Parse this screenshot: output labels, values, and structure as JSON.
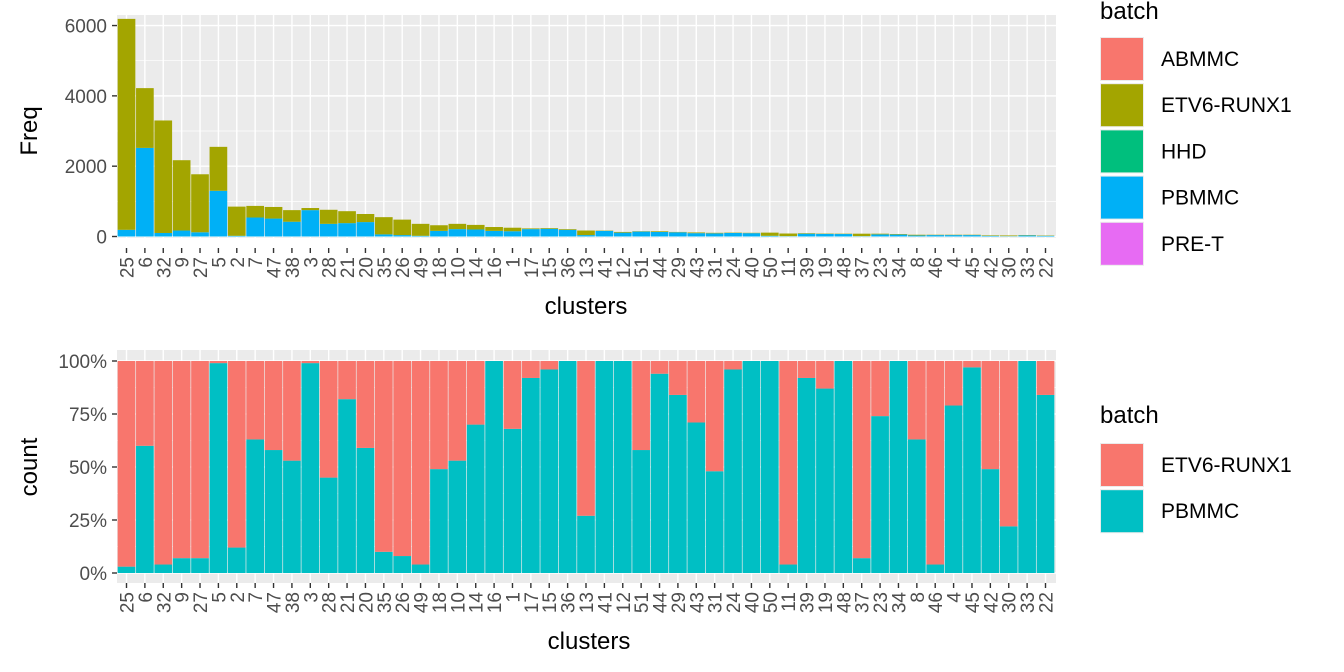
{
  "colors": {
    "ABMMC": "#F8766D",
    "ETV6-RUNX1": "#A3A500",
    "HHD": "#00BF7D",
    "PBMMC": "#00B0F6",
    "PRE-T": "#E76BF3",
    "ETV6-RUNX1_2": "#F8766D",
    "PBMMC_2": "#00BFC4",
    "panel_bg": "#EBEBEB",
    "grid": "#FFFFFF"
  },
  "chart_data": [
    {
      "type": "bar",
      "stacked": true,
      "xlabel": "clusters",
      "ylabel": "Freq",
      "ylim": [
        0,
        6300
      ],
      "yticks": [
        0,
        2000,
        4000,
        6000
      ],
      "ytick_labels": [
        "0",
        "2000",
        "4000",
        "6000"
      ],
      "grid": true,
      "legend_title": "batch",
      "legend_entries": [
        "ABMMC",
        "ETV6-RUNX1",
        "HHD",
        "PBMMC",
        "PRE-T"
      ],
      "legend_position": "right",
      "categories": [
        "25",
        "6",
        "32",
        "9",
        "27",
        "5",
        "2",
        "7",
        "47",
        "38",
        "3",
        "28",
        "21",
        "20",
        "35",
        "26",
        "49",
        "18",
        "10",
        "14",
        "16",
        "1",
        "17",
        "15",
        "36",
        "13",
        "41",
        "12",
        "51",
        "44",
        "29",
        "43",
        "31",
        "24",
        "40",
        "50",
        "11",
        "39",
        "19",
        "48",
        "37",
        "23",
        "34",
        "8",
        "46",
        "4",
        "45",
        "42",
        "30",
        "33",
        "22"
      ],
      "series": [
        {
          "name": "ETV6-RUNX1",
          "values": [
            6000,
            1700,
            3200,
            2000,
            1650,
            1250,
            830,
            330,
            330,
            330,
            60,
            400,
            340,
            230,
            490,
            440,
            340,
            160,
            150,
            130,
            110,
            100,
            20,
            20,
            20,
            130,
            10,
            20,
            10,
            20,
            10,
            20,
            15,
            10,
            10,
            90,
            75,
            15,
            10,
            10,
            70,
            20,
            15,
            20,
            10,
            10,
            10,
            15,
            20,
            10,
            10
          ]
        },
        {
          "name": "PBMMC",
          "values": [
            190,
            2520,
            100,
            170,
            120,
            1300,
            20,
            540,
            510,
            420,
            750,
            360,
            380,
            410,
            60,
            40,
            20,
            160,
            210,
            200,
            160,
            150,
            210,
            220,
            190,
            40,
            160,
            110,
            140,
            130,
            120,
            95,
            90,
            100,
            95,
            20,
            10,
            80,
            75,
            70,
            10,
            60,
            55,
            30,
            40,
            40,
            40,
            20,
            10,
            30,
            20
          ]
        }
      ]
    },
    {
      "type": "bar",
      "stacked": true,
      "position": "fill",
      "xlabel": "clusters",
      "ylabel": "count",
      "ylim": [
        0,
        1
      ],
      "yticks": [
        0,
        0.25,
        0.5,
        0.75,
        1
      ],
      "ytick_labels": [
        "0%",
        "25%",
        "50%",
        "75%",
        "100%"
      ],
      "grid": true,
      "legend_title": "batch",
      "legend_entries": [
        "ETV6-RUNX1",
        "PBMMC"
      ],
      "legend_position": "right",
      "categories": [
        "25",
        "6",
        "32",
        "9",
        "27",
        "5",
        "2",
        "7",
        "47",
        "38",
        "3",
        "28",
        "21",
        "20",
        "35",
        "26",
        "49",
        "18",
        "10",
        "14",
        "16",
        "1",
        "17",
        "15",
        "36",
        "13",
        "41",
        "12",
        "51",
        "44",
        "29",
        "43",
        "31",
        "24",
        "40",
        "50",
        "11",
        "39",
        "19",
        "48",
        "37",
        "23",
        "34",
        "8",
        "46",
        "4",
        "45",
        "42",
        "30",
        "33",
        "22"
      ],
      "series": [
        {
          "name": "PBMMC",
          "values": [
            0.03,
            0.6,
            0.04,
            0.07,
            0.07,
            0.99,
            0.12,
            0.63,
            0.58,
            0.53,
            0.99,
            0.45,
            0.82,
            0.59,
            0.1,
            0.08,
            0.04,
            0.49,
            0.53,
            0.7,
            1.0,
            0.68,
            0.92,
            0.96,
            1.0,
            0.27,
            1.0,
            1.0,
            0.58,
            0.94,
            0.84,
            0.71,
            0.48,
            0.96,
            1.0,
            1.0,
            0.04,
            0.92,
            0.87,
            1.0,
            0.07,
            0.74,
            1.0,
            0.63,
            0.04,
            0.79,
            0.97,
            0.49,
            0.22,
            1.0,
            0.84
          ]
        }
      ]
    }
  ]
}
